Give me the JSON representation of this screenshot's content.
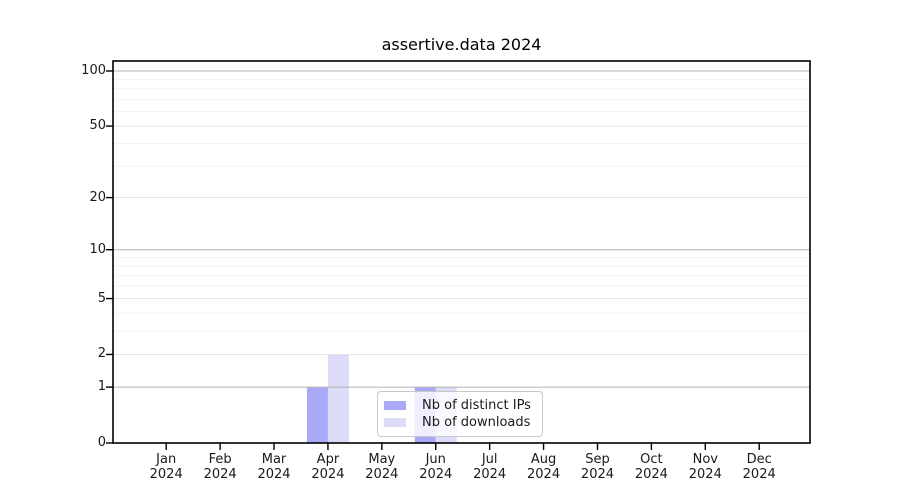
{
  "chart_data": {
    "type": "bar",
    "title": "assertive.data 2024",
    "categories": [
      "Jan",
      "Feb",
      "Mar",
      "Apr",
      "May",
      "Jun",
      "Jul",
      "Aug",
      "Sep",
      "Oct",
      "Nov",
      "Dec"
    ],
    "xlabel_year": "2024",
    "series": [
      {
        "name": "Nb of distinct IPs",
        "color": "#a9a9f7",
        "values": [
          0,
          0,
          0,
          1,
          0,
          1,
          0,
          0,
          0,
          0,
          0,
          0
        ]
      },
      {
        "name": "Nb of downloads",
        "color": "#dcdcf9",
        "values": [
          0,
          0,
          0,
          2,
          0,
          1,
          0,
          0,
          0,
          0,
          0,
          0
        ]
      }
    ],
    "yscale": "log1p",
    "yticks": [
      0,
      1,
      2,
      5,
      10,
      20,
      50,
      100
    ],
    "minor_yticks": [
      3,
      4,
      6,
      7,
      8,
      9,
      30,
      40,
      60,
      70,
      80,
      90
    ],
    "ylim": [
      0,
      115
    ],
    "grid": true,
    "legend": {
      "position": "lower center"
    },
    "background": "#ffffff",
    "axis_color": "#000000"
  }
}
